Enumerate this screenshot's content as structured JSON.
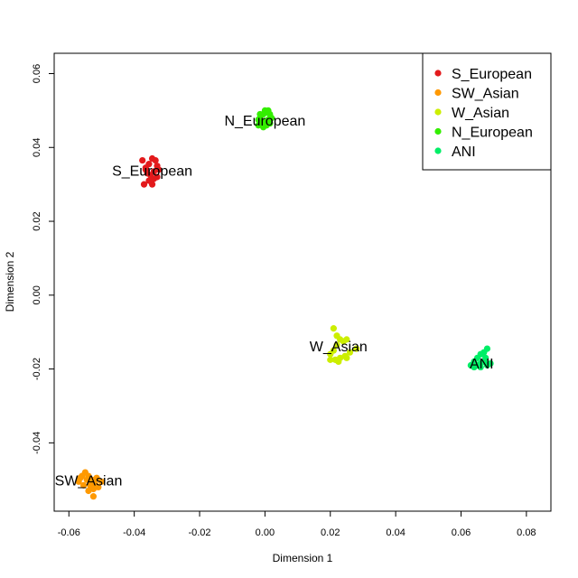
{
  "chart_data": {
    "type": "scatter",
    "title": "",
    "xlabel": "Dimension 1",
    "ylabel": "Dimension 2",
    "xlim": [
      -0.0645,
      0.0875
    ],
    "ylim": [
      -0.0585,
      0.0655
    ],
    "grid": false,
    "legend_position": "top-right",
    "x_ticks": [
      -0.06,
      -0.04,
      -0.02,
      0.0,
      0.02,
      0.04,
      0.06,
      0.08
    ],
    "x_tick_labels": [
      "-0.06",
      "-0.04",
      "-0.02",
      "0.00",
      "0.02",
      "0.04",
      "0.06",
      "0.08"
    ],
    "y_ticks": [
      -0.04,
      -0.02,
      0.0,
      0.02,
      0.04,
      0.06
    ],
    "y_tick_labels": [
      "-0.04",
      "-0.02",
      "0.00",
      "0.02",
      "0.04",
      "0.06"
    ],
    "series": [
      {
        "name": "S_European",
        "color": "#e31a1c",
        "label": "S_European",
        "points": [
          [
            -0.0375,
            0.0365
          ],
          [
            -0.0365,
            0.0345
          ],
          [
            -0.0355,
            0.0355
          ],
          [
            -0.0345,
            0.037
          ],
          [
            -0.0335,
            0.0365
          ],
          [
            -0.033,
            0.035
          ],
          [
            -0.034,
            0.0335
          ],
          [
            -0.035,
            0.0325
          ],
          [
            -0.036,
            0.033
          ],
          [
            -0.037,
            0.03
          ],
          [
            -0.0345,
            0.03
          ],
          [
            -0.033,
            0.032
          ],
          [
            -0.0355,
            0.031
          ],
          [
            -0.034,
            0.0315
          ],
          [
            -0.0365,
            0.034
          ],
          [
            -0.0325,
            0.034
          ]
        ]
      },
      {
        "name": "SW_Asian",
        "color": "#ff9900",
        "label": "SW_Asian",
        "points": [
          [
            -0.057,
            -0.0505
          ],
          [
            -0.056,
            -0.049
          ],
          [
            -0.055,
            -0.048
          ],
          [
            -0.054,
            -0.049
          ],
          [
            -0.053,
            -0.05
          ],
          [
            -0.052,
            -0.051
          ],
          [
            -0.051,
            -0.052
          ],
          [
            -0.0525,
            -0.0525
          ],
          [
            -0.0535,
            -0.0515
          ],
          [
            -0.0545,
            -0.05
          ],
          [
            -0.0555,
            -0.0515
          ],
          [
            -0.054,
            -0.053
          ],
          [
            -0.0525,
            -0.0545
          ],
          [
            -0.05,
            -0.0505
          ],
          [
            -0.0565,
            -0.0495
          ],
          [
            -0.0515,
            -0.0495
          ]
        ]
      },
      {
        "name": "W_Asian",
        "color": "#ccee00",
        "label": "W_Asian",
        "points": [
          [
            0.021,
            -0.009
          ],
          [
            0.022,
            -0.011
          ],
          [
            0.023,
            -0.012
          ],
          [
            0.024,
            -0.0125
          ],
          [
            0.025,
            -0.012
          ],
          [
            0.022,
            -0.0135
          ],
          [
            0.021,
            -0.015
          ],
          [
            0.02,
            -0.016
          ],
          [
            0.0215,
            -0.0175
          ],
          [
            0.023,
            -0.017
          ],
          [
            0.0245,
            -0.0165
          ],
          [
            0.026,
            -0.0155
          ],
          [
            0.028,
            -0.0145
          ],
          [
            0.025,
            -0.017
          ],
          [
            0.02,
            -0.0175
          ],
          [
            0.0225,
            -0.018
          ]
        ]
      },
      {
        "name": "N_European",
        "color": "#33ee00",
        "label": "N_European",
        "points": [
          [
            -0.0015,
            0.048
          ],
          [
            -0.0005,
            0.049
          ],
          [
            0.0005,
            0.0495
          ],
          [
            0.0015,
            0.049
          ],
          [
            0.001,
            0.0475
          ],
          [
            0.0,
            0.047
          ],
          [
            -0.001,
            0.0465
          ],
          [
            -0.002,
            0.046
          ],
          [
            -0.0005,
            0.0455
          ],
          [
            0.0005,
            0.046
          ],
          [
            0.0015,
            0.0465
          ],
          [
            0.002,
            0.048
          ],
          [
            -0.0015,
            0.049
          ],
          [
            0.0,
            0.05
          ],
          [
            0.001,
            0.05
          ],
          [
            -0.002,
            0.0475
          ]
        ]
      },
      {
        "name": "ANI",
        "color": "#00ee66",
        "label": "ANI",
        "points": [
          [
            0.068,
            -0.0145
          ],
          [
            0.067,
            -0.0155
          ],
          [
            0.066,
            -0.016
          ],
          [
            0.065,
            -0.017
          ],
          [
            0.064,
            -0.018
          ],
          [
            0.063,
            -0.019
          ],
          [
            0.064,
            -0.0195
          ],
          [
            0.065,
            -0.019
          ],
          [
            0.066,
            -0.0185
          ],
          [
            0.067,
            -0.018
          ],
          [
            0.068,
            -0.019
          ],
          [
            0.069,
            -0.0185
          ],
          [
            0.066,
            -0.0195
          ],
          [
            0.0675,
            -0.017
          ]
        ]
      }
    ],
    "cluster_labels": [
      {
        "text": "S_European",
        "x": -0.0345,
        "y": 0.0338
      },
      {
        "text": "N_European",
        "x": 0.0,
        "y": 0.0474
      },
      {
        "text": "W_Asian",
        "x": 0.0225,
        "y": -0.0138
      },
      {
        "text": "ANI",
        "x": 0.0663,
        "y": -0.0184
      },
      {
        "text": "SW_Asian",
        "x": -0.054,
        "y": -0.0501
      }
    ],
    "legend": [
      {
        "label": "S_European",
        "color": "#e31a1c"
      },
      {
        "label": "SW_Asian",
        "color": "#ff9900"
      },
      {
        "label": "W_Asian",
        "color": "#ccee00"
      },
      {
        "label": "N_European",
        "color": "#33ee00"
      },
      {
        "label": "ANI",
        "color": "#00ee66"
      }
    ]
  }
}
